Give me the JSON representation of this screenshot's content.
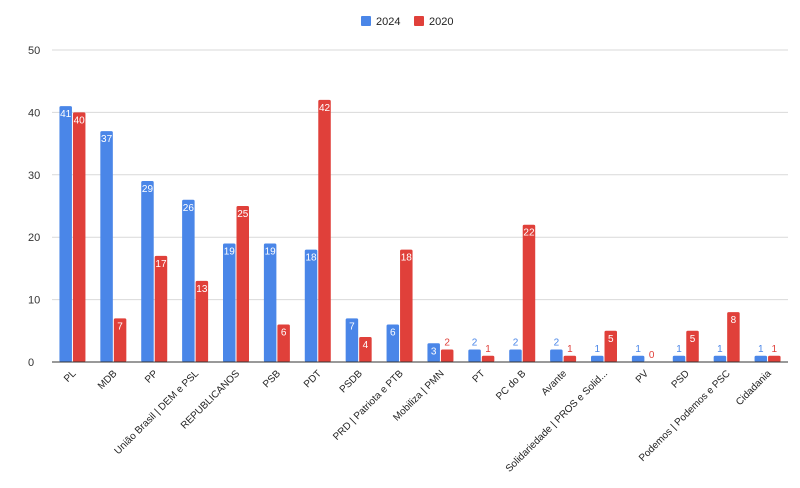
{
  "chart_data": {
    "type": "bar",
    "title": "",
    "xlabel": "",
    "ylabel": "",
    "ylim": [
      0,
      50
    ],
    "yticks": [
      0,
      10,
      20,
      30,
      40,
      50
    ],
    "grid": true,
    "legend_position": "top-center",
    "categories": [
      "PL",
      "MDB",
      "PP",
      "União Brasil | DEM e PSL",
      "REPUBLICANOS",
      "PSB",
      "PDT",
      "PSDB",
      "PRD | Patriota e PTB",
      "Mobiliza | PMN",
      "PT",
      "PC do B",
      "Avante",
      "Solidariedade | PROS e Solid...",
      "PV",
      "PSD",
      "Podemos | Podemos e PSC",
      "Cidadania"
    ],
    "series": [
      {
        "name": "2024",
        "color": "#4a86e8",
        "values": [
          41,
          37,
          29,
          26,
          19,
          19,
          18,
          7,
          6,
          3,
          2,
          2,
          2,
          1,
          1,
          1,
          1,
          1
        ]
      },
      {
        "name": "2020",
        "color": "#e0403a",
        "values": [
          40,
          7,
          17,
          13,
          25,
          6,
          42,
          4,
          18,
          2,
          1,
          22,
          1,
          5,
          0,
          5,
          8,
          1
        ]
      }
    ]
  }
}
